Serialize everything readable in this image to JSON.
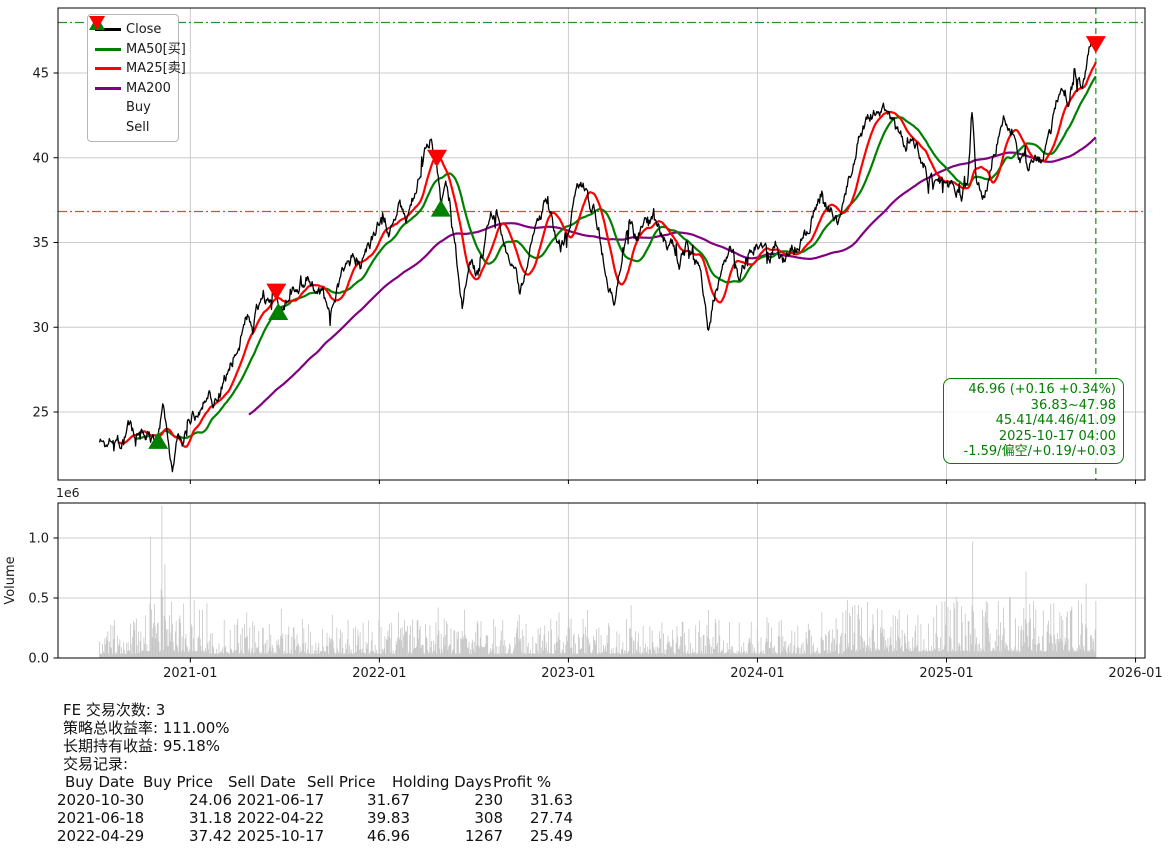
{
  "chart_data": [
    {
      "type": "line",
      "panel": "price",
      "title": "",
      "xlabel": "",
      "ylabel": "",
      "grid": true,
      "x_ticks": [
        {
          "label": "2021-01",
          "t": 2021.0
        },
        {
          "label": "2022-01",
          "t": 2022.0
        },
        {
          "label": "2023-01",
          "t": 2023.0
        },
        {
          "label": "2024-01",
          "t": 2024.0
        },
        {
          "label": "2025-01",
          "t": 2025.0
        },
        {
          "label": "2026-01",
          "t": 2026.0
        }
      ],
      "y_ticks": [
        "25",
        "30",
        "35",
        "40",
        "45"
      ],
      "ylim": [
        20.99,
        48.83
      ],
      "xlim_years": [
        2020.3,
        2026.05
      ],
      "legend": {
        "position": "upper-left",
        "items": [
          {
            "label": "Close",
            "color": "#000000",
            "kind": "line"
          },
          {
            "label": "MA50[买]",
            "color": "#008000",
            "kind": "line"
          },
          {
            "label": "MA25[卖]",
            "color": "#ff0000",
            "kind": "line"
          },
          {
            "label": "MA200",
            "color": "#800080",
            "kind": "line"
          },
          {
            "label": "Buy",
            "color": "#008000",
            "kind": "triangle-up"
          },
          {
            "label": "Sell",
            "color": "#ff0000",
            "kind": "triangle-down"
          }
        ]
      },
      "series": {
        "close": {
          "name": "Close",
          "color": "#000000",
          "t_range": [
            2020.52,
            2025.79
          ],
          "last_value": 46.96,
          "waypoints": [
            [
              2020.52,
              23.4
            ],
            [
              2020.555,
              23.0
            ],
            [
              2020.59,
              23.9
            ],
            [
              2020.63,
              23.3
            ],
            [
              2020.67,
              24.2
            ],
            [
              2020.71,
              23.5
            ],
            [
              2020.75,
              23.9
            ],
            [
              2020.79,
              23.5
            ],
            [
              2020.83,
              24.1
            ],
            [
              2020.86,
              25.5
            ],
            [
              2020.88,
              24.2
            ],
            [
              2020.905,
              21.9
            ],
            [
              2020.93,
              23.4
            ],
            [
              2020.96,
              23.1
            ],
            [
              2021.0,
              24.5
            ],
            [
              2021.05,
              25.4
            ],
            [
              2021.1,
              26.3
            ],
            [
              2021.14,
              25.7
            ],
            [
              2021.2,
              27.6
            ],
            [
              2021.26,
              29.3
            ],
            [
              2021.3,
              30.6
            ],
            [
              2021.33,
              29.7
            ],
            [
              2021.36,
              31.2
            ],
            [
              2021.385,
              32.4
            ],
            [
              2021.41,
              31.4
            ],
            [
              2021.435,
              32.3
            ],
            [
              2021.455,
              31.67
            ],
            [
              2021.47,
              31.18
            ],
            [
              2021.5,
              31.4
            ],
            [
              2021.55,
              32.3
            ],
            [
              2021.6,
              33.0
            ],
            [
              2021.63,
              33.2
            ],
            [
              2021.68,
              32.0
            ],
            [
              2021.74,
              31.2
            ],
            [
              2021.8,
              32.8
            ],
            [
              2021.87,
              34.3
            ],
            [
              2021.9,
              33.5
            ],
            [
              2021.94,
              34.7
            ],
            [
              2021.98,
              35.5
            ],
            [
              2022.02,
              36.3
            ],
            [
              2022.06,
              35.7
            ],
            [
              2022.1,
              36.9
            ],
            [
              2022.14,
              36.5
            ],
            [
              2022.18,
              37.6
            ],
            [
              2022.22,
              38.9
            ],
            [
              2022.25,
              41.0
            ],
            [
              2022.27,
              41.4
            ],
            [
              2022.29,
              40.3
            ],
            [
              2022.305,
              39.83
            ],
            [
              2022.325,
              37.42
            ],
            [
              2022.36,
              38.1
            ],
            [
              2022.4,
              35.4
            ],
            [
              2022.44,
              31.3
            ],
            [
              2022.48,
              34.2
            ],
            [
              2022.52,
              33.0
            ],
            [
              2022.58,
              36.3
            ],
            [
              2022.62,
              36.9
            ],
            [
              2022.66,
              35.5
            ],
            [
              2022.7,
              33.6
            ],
            [
              2022.74,
              32.0
            ],
            [
              2022.78,
              34.0
            ],
            [
              2022.84,
              36.2
            ],
            [
              2022.88,
              37.5
            ],
            [
              2022.92,
              36.2
            ],
            [
              2022.96,
              34.8
            ],
            [
              2023.0,
              36.2
            ],
            [
              2023.04,
              38.2
            ],
            [
              2023.08,
              38.4
            ],
            [
              2023.12,
              37.2
            ],
            [
              2023.16,
              36.0
            ],
            [
              2023.2,
              33.5
            ],
            [
              2023.24,
              31.2
            ],
            [
              2023.28,
              34.0
            ],
            [
              2023.32,
              36.3
            ],
            [
              2023.36,
              35.4
            ],
            [
              2023.4,
              36.2
            ],
            [
              2023.44,
              36.5
            ],
            [
              2023.48,
              36.2
            ],
            [
              2023.52,
              35.0
            ],
            [
              2023.56,
              34.6
            ],
            [
              2023.59,
              33.9
            ],
            [
              2023.62,
              34.8
            ],
            [
              2023.66,
              34.0
            ],
            [
              2023.7,
              33.2
            ],
            [
              2023.74,
              29.9
            ],
            [
              2023.78,
              32.3
            ],
            [
              2023.82,
              33.5
            ],
            [
              2023.87,
              34.7
            ],
            [
              2023.9,
              33.0
            ],
            [
              2023.94,
              34.3
            ],
            [
              2023.98,
              34.8
            ],
            [
              2024.02,
              35.3
            ],
            [
              2024.06,
              34.2
            ],
            [
              2024.1,
              34.9
            ],
            [
              2024.14,
              34.1
            ],
            [
              2024.18,
              35.2
            ],
            [
              2024.22,
              34.5
            ],
            [
              2024.26,
              35.6
            ],
            [
              2024.3,
              37.0
            ],
            [
              2024.34,
              38.2
            ],
            [
              2024.38,
              37.0
            ],
            [
              2024.42,
              36.2
            ],
            [
              2024.46,
              37.6
            ],
            [
              2024.5,
              39.6
            ],
            [
              2024.55,
              41.6
            ],
            [
              2024.6,
              42.5
            ],
            [
              2024.65,
              42.8
            ],
            [
              2024.7,
              42.4
            ],
            [
              2024.74,
              41.3
            ],
            [
              2024.78,
              40.2
            ],
            [
              2024.82,
              41.5
            ],
            [
              2024.86,
              40.2
            ],
            [
              2024.9,
              39.0
            ],
            [
              2024.95,
              38.3
            ],
            [
              2025.0,
              38.2
            ],
            [
              2025.04,
              38.8
            ],
            [
              2025.08,
              37.9
            ],
            [
              2025.11,
              38.6
            ],
            [
              2025.135,
              42.7
            ],
            [
              2025.16,
              38.6
            ],
            [
              2025.2,
              38.1
            ],
            [
              2025.24,
              40.0
            ],
            [
              2025.28,
              41.9
            ],
            [
              2025.31,
              42.6
            ],
            [
              2025.35,
              41.8
            ],
            [
              2025.39,
              40.2
            ],
            [
              2025.43,
              39.4
            ],
            [
              2025.47,
              40.4
            ],
            [
              2025.5,
              39.9
            ],
            [
              2025.54,
              41.0
            ],
            [
              2025.58,
              43.1
            ],
            [
              2025.62,
              44.3
            ],
            [
              2025.65,
              43.6
            ],
            [
              2025.68,
              44.9
            ],
            [
              2025.71,
              44.2
            ],
            [
              2025.74,
              45.4
            ],
            [
              2025.765,
              47.2
            ],
            [
              2025.79,
              46.96
            ]
          ]
        },
        "ma25": {
          "name": "MA25[卖]",
          "color": "#ff0000",
          "window": 25,
          "last_value": 45.41
        },
        "ma50": {
          "name": "MA50[买]",
          "color": "#008000",
          "window": 50,
          "last_value": 44.46
        },
        "ma200": {
          "name": "MA200",
          "color": "#800080",
          "window": 200,
          "last_value": 41.09
        }
      },
      "hlines": [
        {
          "value": 47.98,
          "color": "#008000",
          "style": "dashdot"
        },
        {
          "value": 36.83,
          "color": "#ff1a1a",
          "style": "dashdot"
        }
      ],
      "vline": {
        "t": 2025.79,
        "color": "#008000",
        "style": "dashed"
      },
      "markers": [
        {
          "type": "buy",
          "date": "2020-10-30",
          "t": 2020.83,
          "price": 23.3
        },
        {
          "type": "sell",
          "date": "2021-06-17",
          "t": 2021.455,
          "price": 32.1
        },
        {
          "type": "buy",
          "date": "2021-06-18",
          "t": 2021.465,
          "price": 30.9
        },
        {
          "type": "sell",
          "date": "2022-04-22",
          "t": 2022.305,
          "price": 40.0
        },
        {
          "type": "buy",
          "date": "2022-04-29",
          "t": 2022.325,
          "price": 37.0
        },
        {
          "type": "sell",
          "date": "2025-10-17",
          "t": 2025.79,
          "price": 46.7
        }
      ],
      "annotation": {
        "color": "#008000",
        "lines": [
          "46.96 (+0.16 +0.34%)",
          "36.83~47.98",
          "45.41/44.46/41.09",
          "2025-10-17 04:00",
          "-1.59/偏空/+0.19/+0.03"
        ]
      }
    },
    {
      "type": "bar",
      "panel": "volume",
      "ylabel": "Volume",
      "scale_label": "1e6",
      "y_ticks": [
        "0.0",
        "0.5",
        "1.0"
      ],
      "ylim": [
        0,
        1.29
      ],
      "bar_color": "#c6c6c6",
      "base_noise": {
        "min": 0.035,
        "max": 0.33
      },
      "boost_regions": [
        [
          2020.74,
          2021.1,
          1.5
        ],
        [
          2024.45,
          2025.8,
          1.55
        ]
      ],
      "spikes": [
        [
          2020.79,
          1.01
        ],
        [
          2020.85,
          1.27
        ],
        [
          2020.865,
          0.78
        ],
        [
          2020.9,
          0.47
        ],
        [
          2021.05,
          0.4
        ],
        [
          2021.3,
          0.38
        ],
        [
          2021.48,
          0.41
        ],
        [
          2021.75,
          0.36
        ],
        [
          2022.1,
          0.38
        ],
        [
          2022.31,
          0.42
        ],
        [
          2022.45,
          0.4
        ],
        [
          2022.74,
          0.36
        ],
        [
          2022.95,
          0.38
        ],
        [
          2023.1,
          0.4
        ],
        [
          2023.33,
          0.44
        ],
        [
          2023.74,
          0.4
        ],
        [
          2024.05,
          0.34
        ],
        [
          2024.34,
          0.38
        ],
        [
          2024.55,
          0.42
        ],
        [
          2024.75,
          0.4
        ],
        [
          2024.95,
          0.44
        ],
        [
          2025.02,
          0.4
        ],
        [
          2025.14,
          0.97
        ],
        [
          2025.3,
          0.42
        ],
        [
          2025.42,
          0.72
        ],
        [
          2025.55,
          0.45
        ],
        [
          2025.66,
          0.4
        ],
        [
          2025.74,
          0.62
        ]
      ]
    }
  ],
  "stats": {
    "lines": [
      "FE 交易次数: 3",
      "策略总收益率: 111.00%",
      "长期持有收益: 95.18%",
      "交易记录:"
    ],
    "table": {
      "headers": [
        "Buy Date",
        "Buy Price",
        "Sell Date",
        "Sell Price",
        "Holding Days",
        "Profit %"
      ],
      "rows": [
        [
          "2020-10-30",
          "24.06",
          "2021-06-17",
          "31.67",
          "230",
          "31.63"
        ],
        [
          "2021-06-18",
          "31.18",
          "2022-04-22",
          "39.83",
          "308",
          "27.74"
        ],
        [
          "2022-04-29",
          "37.42",
          "2025-10-17",
          "46.96",
          "1267",
          "25.49"
        ]
      ]
    }
  }
}
